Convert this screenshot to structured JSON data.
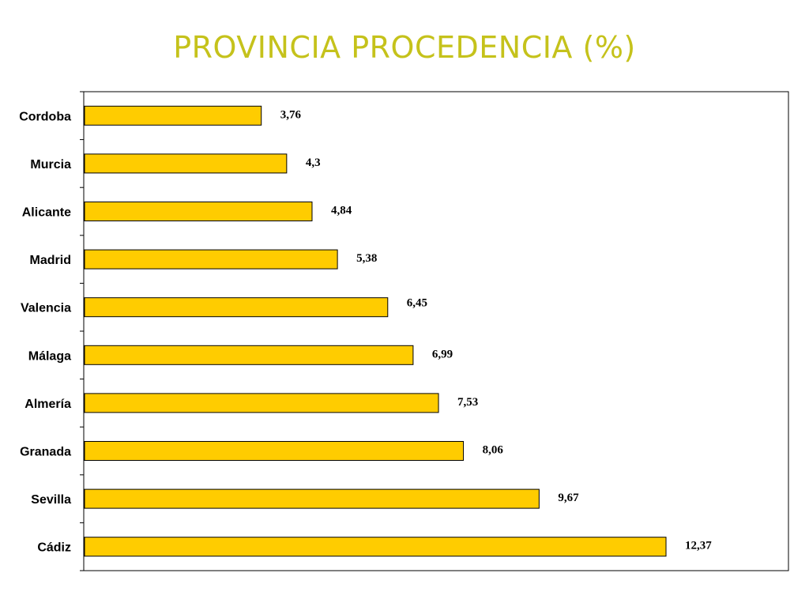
{
  "title": "PROVINCIA PROCEDENCIA (%)",
  "colors": {
    "title": "#C5C21B",
    "bar_fill": "#FFCC00",
    "bar_stroke": "#000000"
  },
  "chart_data": {
    "type": "bar",
    "orientation": "horizontal",
    "title": "PROVINCIA PROCEDENCIA (%)",
    "xlabel": "",
    "ylabel": "",
    "grid": false,
    "legend": "none",
    "xlim": [
      0,
      14
    ],
    "categories": [
      "Cordoba",
      "Murcia",
      "Alicante",
      "Madrid",
      "Valencia",
      "Málaga",
      "Almería",
      "Granada",
      "Sevilla",
      "Cádiz"
    ],
    "values": [
      3.76,
      4.3,
      4.84,
      5.38,
      6.45,
      6.99,
      7.53,
      8.06,
      9.67,
      12.37
    ],
    "value_labels": [
      "3,76",
      "4,3",
      "4,84",
      "5,38",
      "6,45",
      "6,99",
      "7,53",
      "8,06",
      "9,67",
      "12,37"
    ]
  }
}
